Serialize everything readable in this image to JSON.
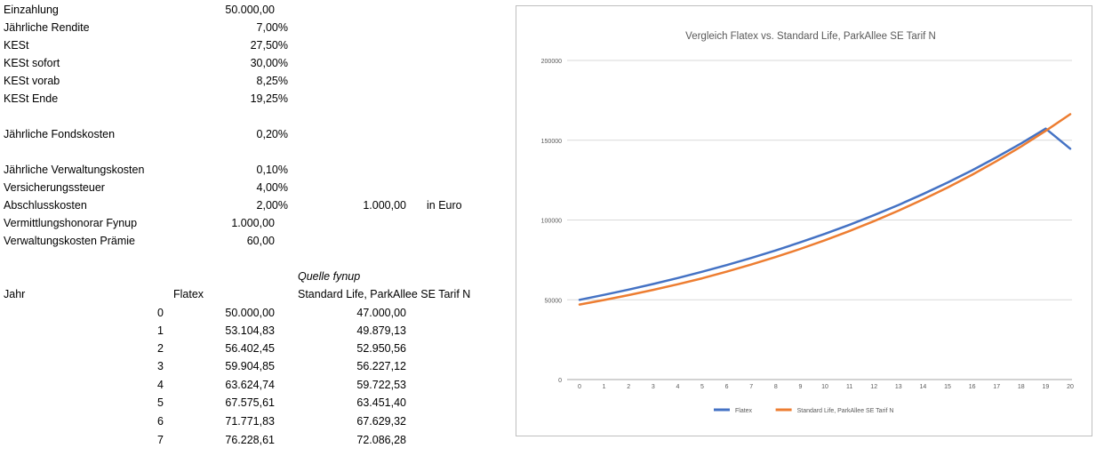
{
  "params": [
    {
      "label": "Einzahlung",
      "value": "50.000,00"
    },
    {
      "label": "Jährliche Rendite",
      "value": "7,00%"
    },
    {
      "label": "KESt",
      "value": "27,50%"
    },
    {
      "label": "KESt sofort",
      "value": "30,00%"
    },
    {
      "label": "KESt vorab",
      "value": "8,25%"
    },
    {
      "label": "KESt Ende",
      "value": "19,25%"
    },
    {
      "label": "",
      "value": ""
    },
    {
      "label": "Jährliche Fondskosten",
      "value": "0,20%"
    },
    {
      "label": "",
      "value": ""
    },
    {
      "label": "Jährliche Verwaltungskosten",
      "value": "0,10%"
    },
    {
      "label": "Versicherungssteuer",
      "value": "4,00%"
    },
    {
      "label": "Abschlusskosten",
      "value": "2,00%",
      "extra_value": "1.000,00",
      "extra_unit": "in Euro"
    },
    {
      "label": "Vermittlungshonorar Fynup",
      "value": "1.000,00"
    },
    {
      "label": "Verwaltungskosten Prämie",
      "value": "60,00"
    }
  ],
  "source_note": "Quelle fynup",
  "table": {
    "headers": [
      "Jahr",
      "Flatex",
      "Standard Life, ParkAllee SE Tarif N"
    ],
    "rows": [
      [
        "0",
        "50.000,00",
        "47.000,00"
      ],
      [
        "1",
        "53.104,83",
        "49.879,13"
      ],
      [
        "2",
        "56.402,45",
        "52.950,56"
      ],
      [
        "3",
        "59.904,85",
        "56.227,12"
      ],
      [
        "4",
        "63.624,74",
        "59.722,53"
      ],
      [
        "5",
        "67.575,61",
        "63.451,40"
      ],
      [
        "6",
        "71.771,83",
        "67.629,32"
      ],
      [
        "7",
        "76.228,61",
        "72.086,28"
      ]
    ]
  },
  "chart_data": {
    "type": "line",
    "title": "Vergleich Flatex vs. Standard Life, ParkAllee SE Tarif N",
    "x": [
      0,
      1,
      2,
      3,
      4,
      5,
      6,
      7,
      8,
      9,
      10,
      11,
      12,
      13,
      14,
      15,
      16,
      17,
      18,
      19,
      20
    ],
    "ylim": [
      0,
      200000
    ],
    "yticks": [
      0,
      50000,
      100000,
      150000,
      200000
    ],
    "grid": true,
    "legend_position": "bottom",
    "series": [
      {
        "name": "Flatex",
        "color": "#4472C4",
        "values": [
          50000,
          53105,
          56402,
          59905,
          63625,
          67576,
          71772,
          76229,
          80962,
          85989,
          91330,
          97004,
          103032,
          109437,
          116243,
          123475,
          131162,
          139333,
          148018,
          157252,
          144700
        ]
      },
      {
        "name": "Standard Life, ParkAllee SE Tarif N",
        "color": "#ED7D31",
        "values": [
          47000,
          49879,
          52951,
          56227,
          59723,
          63451,
          67629,
          72086,
          76839,
          81908,
          87317,
          93090,
          99251,
          105829,
          112853,
          120354,
          128367,
          136928,
          146076,
          155855,
          166311
        ]
      }
    ]
  }
}
